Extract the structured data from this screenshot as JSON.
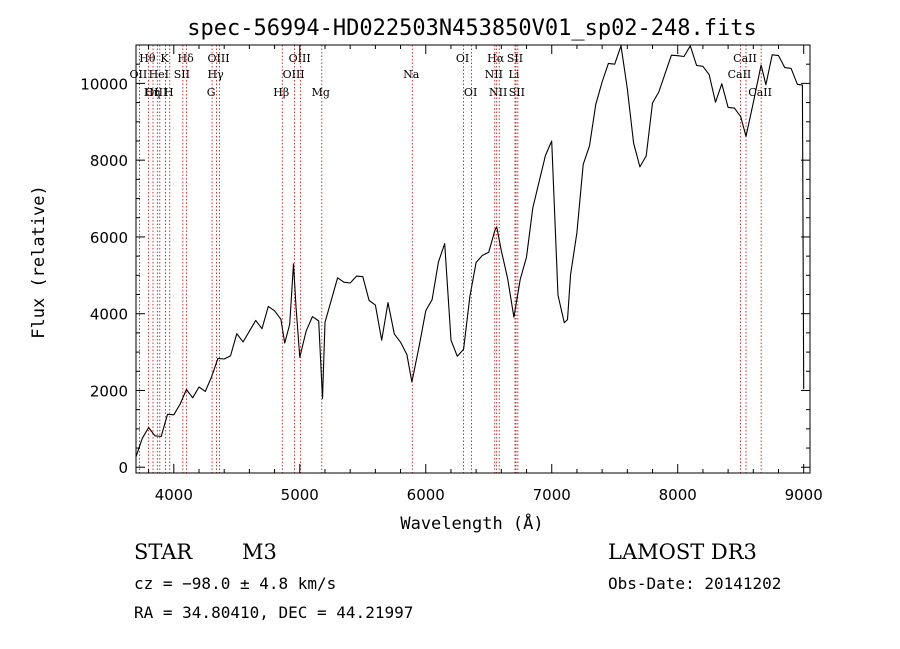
{
  "chart_data": {
    "type": "line",
    "title": "spec-56994-HD022503N453850V01_sp02-248.fits",
    "xlabel": "Wavelength (Å)",
    "ylabel": "Flux (relative)",
    "xlim": [
      3700,
      9050
    ],
    "ylim": [
      -150,
      11000
    ],
    "xticks": [
      4000,
      5000,
      6000,
      7000,
      8000,
      9000
    ],
    "yticks": [
      0,
      2000,
      4000,
      6000,
      8000,
      10000
    ],
    "series": [
      {
        "x": [
          3700,
          3750,
          3800,
          3850,
          3900,
          3950,
          4000,
          4050,
          4100,
          4150,
          4200,
          4250,
          4300,
          4350,
          4400,
          4450,
          4500,
          4550,
          4600,
          4650,
          4700,
          4750,
          4800,
          4850,
          4880,
          4920,
          4950,
          4970,
          5000,
          5050,
          5100,
          5150,
          5180,
          5200,
          5250,
          5300,
          5350,
          5400,
          5450,
          5500,
          5550,
          5600,
          5650,
          5700,
          5750,
          5800,
          5850,
          5890,
          5950,
          6000,
          6050,
          6100,
          6150,
          6200,
          6250,
          6300,
          6350,
          6400,
          6450,
          6500,
          6550,
          6563,
          6600,
          6650,
          6700,
          6750,
          6800,
          6850,
          6900,
          6950,
          7000,
          7050,
          7100,
          7125,
          7150,
          7200,
          7250,
          7300,
          7350,
          7400,
          7450,
          7500,
          7550,
          7600,
          7650,
          7700,
          7750,
          7800,
          7850,
          7900,
          7950,
          8000,
          8050,
          8100,
          8150,
          8200,
          8250,
          8300,
          8350,
          8400,
          8450,
          8500,
          8542,
          8600,
          8662,
          8700,
          8750,
          8800,
          8850,
          8900,
          8950,
          8990,
          9000
        ],
        "y": [
          500,
          800,
          900,
          1000,
          800,
          1200,
          1500,
          1600,
          1800,
          1900,
          2000,
          2200,
          2400,
          2700,
          3000,
          2900,
          3300,
          3400,
          3500,
          3600,
          3700,
          4100,
          4300,
          3900,
          3100,
          3900,
          5300,
          4000,
          3000,
          3500,
          3700,
          3900,
          1700,
          4000,
          4400,
          4800,
          5000,
          4800,
          4800,
          5100,
          4300,
          4000,
          3400,
          4200,
          3700,
          3300,
          2800,
          2400,
          3200,
          3900,
          4500,
          5300,
          5600,
          3400,
          2800,
          3300,
          4500,
          5200,
          5700,
          5600,
          6000,
          6400,
          5600,
          4700,
          4000,
          4800,
          5700,
          6800,
          7300,
          8300,
          8500,
          4300,
          3900,
          3800,
          4800,
          6200,
          7800,
          8600,
          9500,
          9900,
          10700,
          10500,
          10800,
          10000,
          8400,
          7600,
          8200,
          9400,
          10000,
          10300,
          10600,
          10900,
          10700,
          10800,
          10600,
          10400,
          10000,
          9600,
          9900,
          9600,
          9400,
          9000,
          8800,
          9500,
          10300,
          10100,
          10700,
          10500,
          10500,
          10300,
          10200,
          10000,
          1900
        ]
      }
    ],
    "lines": [
      {
        "label": "Hθ",
        "x": 3798,
        "row": 1
      },
      {
        "label": "OII",
        "x": 3727,
        "row": 2
      },
      {
        "label": "OIII",
        "x": 3869,
        "row": 3
      },
      {
        "label": "Hη",
        "x": 3835,
        "row": 3
      },
      {
        "label": "K",
        "x": 3934,
        "row": 1
      },
      {
        "label": "HeI",
        "x": 3889,
        "row": 2
      },
      {
        "label": "H",
        "x": 3968,
        "row": 3
      },
      {
        "label": "SII",
        "x": 4072,
        "row": 2
      },
      {
        "label": "Hδ",
        "x": 4102,
        "row": 1
      },
      {
        "label": "OIII",
        "x": 4363,
        "row": 1
      },
      {
        "label": "Hγ",
        "x": 4340,
        "row": 2
      },
      {
        "label": "G",
        "x": 4304,
        "row": 3
      },
      {
        "label": "Hβ",
        "x": 4861,
        "row": 3
      },
      {
        "label": "OIII",
        "x": 5007,
        "row": 1
      },
      {
        "label": "OIII",
        "x": 4959,
        "row": 2
      },
      {
        "label": "Mg",
        "x": 5175,
        "row": 3
      },
      {
        "label": "Na",
        "x": 5893,
        "row": 2
      },
      {
        "label": "OI",
        "x": 6300,
        "row": 1
      },
      {
        "label": "OI",
        "x": 6364,
        "row": 3
      },
      {
        "label": "Hα",
        "x": 6563,
        "row": 1
      },
      {
        "label": "NII",
        "x": 6548,
        "row": 2
      },
      {
        "label": "NII",
        "x": 6583,
        "row": 3
      },
      {
        "label": "SII",
        "x": 6716,
        "row": 1
      },
      {
        "label": "Li",
        "x": 6708,
        "row": 2
      },
      {
        "label": "SII",
        "x": 6731,
        "row": 3
      },
      {
        "label": "CaII",
        "x": 8542,
        "row": 1
      },
      {
        "label": "CaII",
        "x": 8498,
        "row": 2
      },
      {
        "label": "CaII",
        "x": 8662,
        "row": 3
      }
    ],
    "line_color": "#c00000",
    "grid": false
  },
  "info": {
    "class_label": "STAR",
    "subclass": "M3",
    "cz": "cz = −98.0 ± 4.8 km/s",
    "coords": "RA =  34.80410, DEC =  44.21997",
    "survey": "LAMOST DR3",
    "obs_date": "Obs-Date: 20141202"
  }
}
